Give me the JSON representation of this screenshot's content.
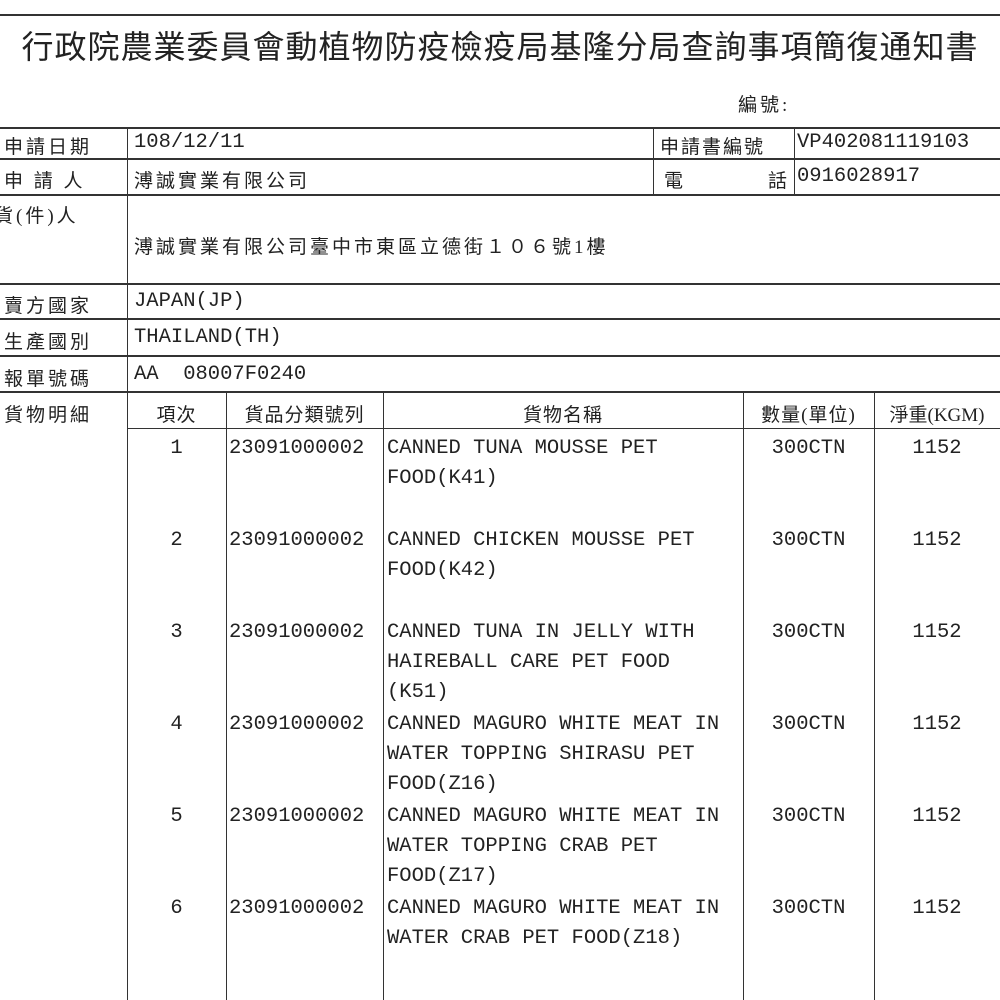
{
  "title": "行政院農業委員會動植物防疫檢疫局基隆分局查詢事項簡復通知書",
  "serial_label": "編號:",
  "fields": {
    "apply_date_label": "申請日期",
    "apply_date": "108/12/11",
    "application_no_label": "申請書編號",
    "application_no": "VP402081119103",
    "applicant_label": "申 請 人",
    "applicant": "溥誠實業有限公司",
    "phone_label_1": "電",
    "phone_label_2": "話",
    "phone": "0916028917",
    "consignee_label": "貨(件)人",
    "consignee": "溥誠實業有限公司臺中市東區立德街１０６號1樓",
    "seller_country_label": "賣方國家",
    "seller_country": "JAPAN(JP)",
    "origin_label": "生產國別",
    "origin": "THAILAND(TH)",
    "declaration_no_label": "報單號碼",
    "declaration_no": "AA  08007F0240",
    "goods_label": "貨物明細"
  },
  "goods_table": {
    "headers": [
      "項次",
      "貨品分類號列",
      "貨物名稱",
      "數量(單位)",
      "淨重(KGM)"
    ],
    "rows": [
      {
        "no": "1",
        "code": "23091000002",
        "name": "CANNED TUNA MOUSSE PET\nFOOD(K41)",
        "qty": "300CTN",
        "weight": "1152"
      },
      {
        "no": "2",
        "code": "23091000002",
        "name": "CANNED CHICKEN MOUSSE PET\nFOOD(K42)",
        "qty": "300CTN",
        "weight": "1152"
      },
      {
        "no": "3",
        "code": "23091000002",
        "name": "CANNED TUNA IN JELLY WITH\nHAIREBALL CARE PET FOOD\n(K51)",
        "qty": "300CTN",
        "weight": "1152"
      },
      {
        "no": "4",
        "code": "23091000002",
        "name": "CANNED MAGURO WHITE MEAT IN\nWATER TOPPING SHIRASU PET\nFOOD(Z16)",
        "qty": "300CTN",
        "weight": "1152"
      },
      {
        "no": "5",
        "code": "23091000002",
        "name": "CANNED MAGURO WHITE MEAT IN\nWATER TOPPING CRAB PET\nFOOD(Z17)",
        "qty": "300CTN",
        "weight": "1152"
      },
      {
        "no": "6",
        "code": "23091000002",
        "name": "CANNED MAGURO WHITE MEAT IN\nWATER CRAB PET FOOD(Z18)",
        "qty": "300CTN",
        "weight": "1152"
      }
    ]
  }
}
